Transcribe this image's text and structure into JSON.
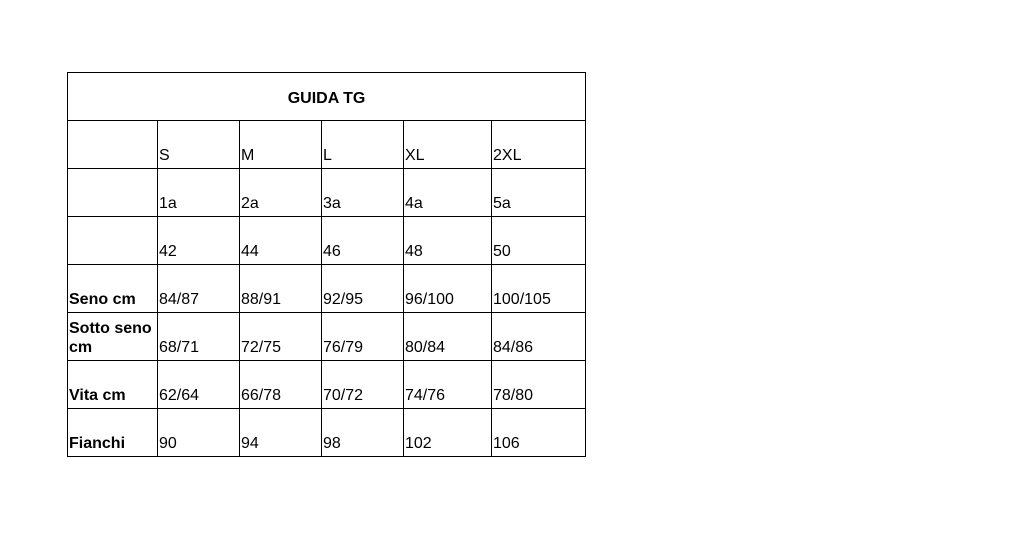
{
  "title": "GUIDA TG",
  "header_rows": [
    [
      "",
      "S",
      "M",
      "L",
      "XL",
      "2XL"
    ],
    [
      "",
      "1a",
      "2a",
      "3a",
      "4a",
      "5a"
    ],
    [
      "",
      "42",
      "44",
      "46",
      "48",
      "50"
    ]
  ],
  "rows": [
    {
      "label": "Seno cm",
      "values": [
        "84/87",
        "88/91",
        "92/95",
        "96/100",
        "100/105"
      ]
    },
    {
      "label": "Sotto seno cm",
      "values": [
        "68/71",
        "72/75",
        "76/79",
        "80/84",
        "84/86"
      ]
    },
    {
      "label": "Vita cm",
      "values": [
        "62/64",
        "66/78",
        "70/72",
        "74/76",
        "78/80"
      ]
    },
    {
      "label": "Fianchi",
      "values": [
        "90",
        "94",
        "98",
        "102",
        "106"
      ]
    }
  ]
}
